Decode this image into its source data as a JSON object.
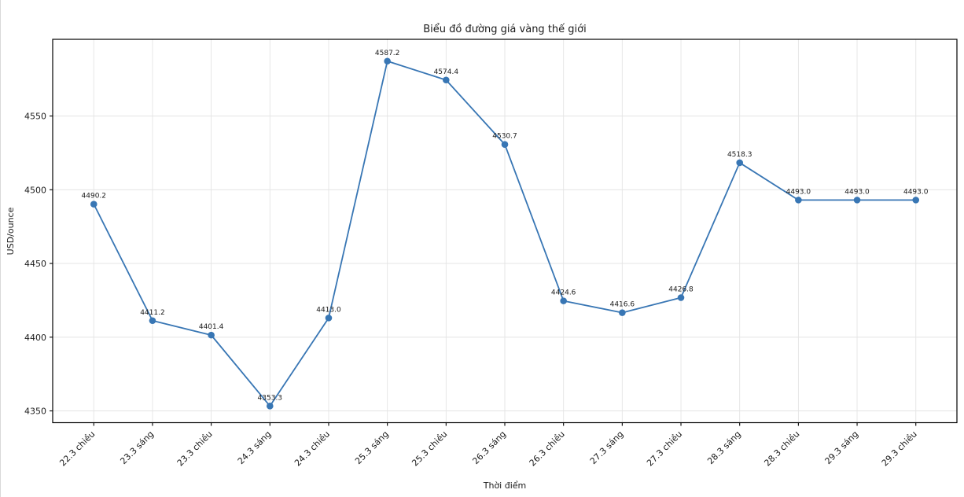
{
  "figure": {
    "background": "#ffffff",
    "border_color": "#d9d9d9"
  },
  "chart_data": {
    "type": "line",
    "title": "Biểu đồ đường giá vàng thế giới",
    "xlabel": "Thời điểm",
    "ylabel": "USD/ounce",
    "categories": [
      "22.3 chiều",
      "23.3 sáng",
      "23.3 chiều",
      "24.3 sáng",
      "24.3 chiều",
      "25.3 sáng",
      "25.3 chiều",
      "26.3 sáng",
      "26.3 chiều",
      "27.3 sáng",
      "27.3 chiều",
      "28.3 sáng",
      "28.3 chiều",
      "29.3 sáng",
      "29.3 chiều"
    ],
    "values": [
      4490.2,
      4411.2,
      4401.4,
      4353.3,
      4413.0,
      4587.2,
      4574.4,
      4530.7,
      4424.6,
      4416.6,
      4426.8,
      4518.3,
      4493.0,
      4493.0,
      4493.0
    ],
    "data_label_decimals": 1,
    "yticks": [
      4350,
      4400,
      4450,
      4500,
      4550
    ],
    "ylim": [
      4342,
      4602
    ],
    "grid": true,
    "legend_position": "none",
    "xtick_rotation": 45,
    "line_color": "#3876b4",
    "marker": "circle",
    "grid_color": "#e4e4e4",
    "spine_color": "#000000",
    "text_color": "#1a1a1a"
  }
}
